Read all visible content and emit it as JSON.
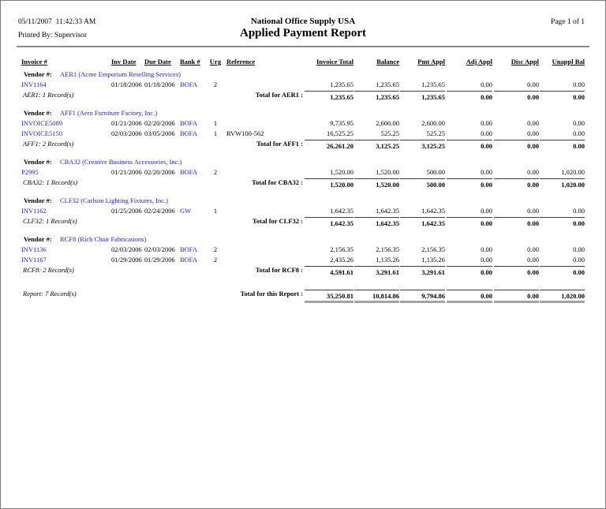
{
  "header": {
    "printed_datetime": "05/11/2007  11:42:33 AM",
    "printed_by": "Printed By: Supervisor",
    "company": "National Office Supply USA",
    "title": "Applied Payment Report",
    "page_label": "Page 1 of 1"
  },
  "colors": {
    "link": "#2222cc",
    "rule": "#8a8a8a",
    "bar": "#a3a3a3",
    "page_border": "#7a7a7a",
    "text": "#000000"
  },
  "table": {
    "vendor_label": "Vendor #:",
    "columns": [
      {
        "key": "invoice",
        "label": "Invoice #",
        "numeric": false
      },
      {
        "key": "inv-date",
        "label": "Inv Date",
        "numeric": false
      },
      {
        "key": "due-date",
        "label": "Due Date",
        "numeric": false
      },
      {
        "key": "bank",
        "label": "Bank #",
        "numeric": false
      },
      {
        "key": "urg",
        "label": "Urg",
        "numeric": false
      },
      {
        "key": "reference",
        "label": "Reference",
        "numeric": false
      },
      {
        "key": "invoice-total",
        "label": "Invoice Total",
        "numeric": true
      },
      {
        "key": "balance",
        "label": "Balance",
        "numeric": true
      },
      {
        "key": "pmt-appl",
        "label": "Pmt Appl",
        "numeric": true
      },
      {
        "key": "adj-appl",
        "label": "Adj Appl",
        "numeric": true
      },
      {
        "key": "disc-appl",
        "label": "Disc Appl",
        "numeric": true
      },
      {
        "key": "unappl-bal",
        "label": "Unappl Bal",
        "numeric": true
      }
    ],
    "groups": [
      {
        "vendor": "AER1 (Acme Emporium Reselling Services)",
        "rows": [
          {
            "invoice": "INV1164",
            "inv_date": "01/18/2006",
            "due_date": "01/18/2006",
            "bank": "BOFA",
            "urg": "2",
            "reference": "",
            "amounts": [
              "1,235.65",
              "1,235.65",
              "1,235.65",
              "0.00",
              "0.00",
              "0.00"
            ]
          }
        ],
        "record_count": "AER1: 1 Record(s)",
        "total_label": "Total for AER1 :",
        "totals": [
          "1,235.65",
          "1,235.65",
          "1,235.65",
          "0.00",
          "0.00",
          "0.00"
        ]
      },
      {
        "vendor": "AFF1 (Aero Furniture Factory, Inc.)",
        "rows": [
          {
            "invoice": "INVOICE5089",
            "inv_date": "01/21/2006",
            "due_date": "02/20/2006",
            "bank": "BOFA",
            "urg": "1",
            "reference": "",
            "amounts": [
              "9,735.95",
              "2,600.00",
              "2,600.00",
              "0.00",
              "0.00",
              "0.00"
            ]
          },
          {
            "invoice": "INVOICE5150",
            "inv_date": "02/03/2006",
            "due_date": "03/05/2006",
            "bank": "BOFA",
            "urg": "1",
            "reference": "RVW100-562",
            "amounts": [
              "16,525.25",
              "525.25",
              "525.25",
              "0.00",
              "0.00",
              "0.00"
            ]
          }
        ],
        "record_count": "AFF1: 2 Record(s)",
        "total_label": "Total for AFF1 :",
        "totals": [
          "26,261.20",
          "3,125.25",
          "3,125.25",
          "0.00",
          "0.00",
          "0.00"
        ]
      },
      {
        "vendor": "CBA32 (Creative Business Accessories, Inc.)",
        "rows": [
          {
            "invoice": "P2995",
            "inv_date": "01/21/2006",
            "due_date": "02/20/2006",
            "bank": "BOFA",
            "urg": "2",
            "reference": "",
            "amounts": [
              "1,520.00",
              "1,520.00",
              "500.00",
              "0.00",
              "0.00",
              "1,020.00"
            ]
          }
        ],
        "record_count": "CBA32: 1 Record(s)",
        "total_label": "Total for CBA32 :",
        "totals": [
          "1,520.00",
          "1,520.00",
          "500.00",
          "0.00",
          "0.00",
          "1,020.00"
        ]
      },
      {
        "vendor": "CLF32 (Carlson Lighting Fixtures, Inc.)",
        "rows": [
          {
            "invoice": "INV1162",
            "inv_date": "01/25/2006",
            "due_date": "02/24/2006",
            "bank": "GW",
            "urg": "1",
            "reference": "",
            "amounts": [
              "1,642.35",
              "1,642.35",
              "1,642.35",
              "0.00",
              "0.00",
              "0.00"
            ]
          }
        ],
        "record_count": "CLF32: 1 Record(s)",
        "total_label": "Total for CLF32 :",
        "totals": [
          "1,642.35",
          "1,642.35",
          "1,642.35",
          "0.00",
          "0.00",
          "0.00"
        ]
      },
      {
        "vendor": "RCF8 (Rich Chair Fabrications)",
        "rows": [
          {
            "invoice": "INV1136",
            "inv_date": "02/03/2006",
            "due_date": "02/03/2006",
            "bank": "BOFA",
            "urg": "2",
            "reference": "",
            "amounts": [
              "2,156.35",
              "2,156.35",
              "2,156.35",
              "0.00",
              "0.00",
              "0.00"
            ]
          },
          {
            "invoice": "INV1167",
            "inv_date": "01/29/2006",
            "due_date": "01/29/2006",
            "bank": "BOFA",
            "urg": "2",
            "reference": "",
            "amounts": [
              "2,435.26",
              "1,135.26",
              "1,135.26",
              "0.00",
              "0.00",
              "0.00"
            ]
          }
        ],
        "record_count": "RCF8: 2 Record(s)",
        "total_label": "Total for RCF8 :",
        "totals": [
          "4,591.61",
          "3,291.61",
          "3,291.61",
          "0.00",
          "0.00",
          "0.00"
        ]
      }
    ],
    "report_footer": {
      "record_count": "Report: 7 Record(s)",
      "total_label": "Total for this Report :",
      "totals": [
        "35,250.81",
        "10,814.86",
        "9,794.86",
        "0.00",
        "0.00",
        "1,020.00"
      ]
    }
  }
}
